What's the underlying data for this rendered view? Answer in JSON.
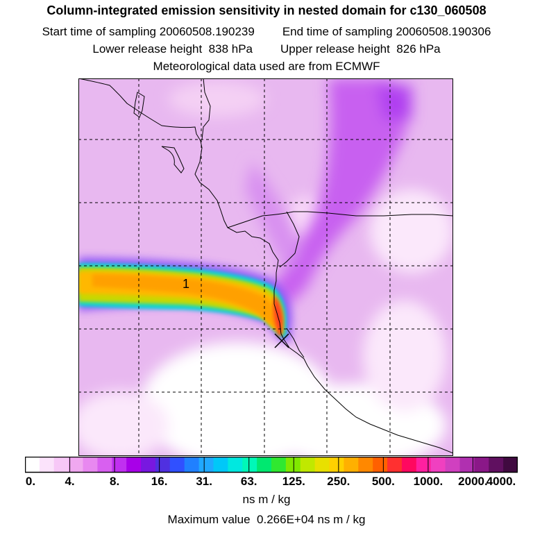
{
  "header": {
    "title": "Column-integrated emission sensitivity in nested domain for c130_060508",
    "start_label": "Start time of sampling",
    "start_value": "20060508.190239",
    "end_label": "End time of sampling",
    "end_value": "20060508.190306",
    "lower_label": "Lower release height",
    "lower_value": "838 hPa",
    "upper_label": "Upper release height",
    "upper_value": "826 hPa",
    "met": "Meteorological data used are from ECMWF"
  },
  "map": {
    "plume_label": "1",
    "release_marker": "x-icon",
    "colors": {
      "background": "#e8b8f0",
      "plume_outer": "#00d8d8",
      "plume_mid": "#c8d800",
      "plume_core": "#ffb800",
      "plume_hot": "#ff4020"
    }
  },
  "legend": {
    "tick_labels": [
      "0.",
      "4.",
      "8.",
      "16.",
      "31.",
      "63.",
      "125.",
      "250.",
      "500.",
      "1000.",
      "2000.",
      "4000."
    ],
    "colors": [
      "#ffffff",
      "#fbe3fb",
      "#f7c8f7",
      "#f0a8f0",
      "#e888f0",
      "#d860f0",
      "#c030f0",
      "#a800e8",
      "#7818e0",
      "#5030e0",
      "#3050ff",
      "#2080ff",
      "#20a8ff",
      "#00c8f8",
      "#00e8e0",
      "#00f8b8",
      "#00e870",
      "#30e830",
      "#80e800",
      "#c0e800",
      "#e8e000",
      "#ffd000",
      "#ffb000",
      "#ff8800",
      "#ff6000",
      "#ff3030",
      "#ff0860",
      "#ff20a0",
      "#f040c0",
      "#d040c0",
      "#b030b0",
      "#8a1888",
      "#601060",
      "#400a40"
    ],
    "units": "ns m / kg",
    "max_label": "Maximum value",
    "max_value": "0.266E+04 ns m / kg"
  }
}
